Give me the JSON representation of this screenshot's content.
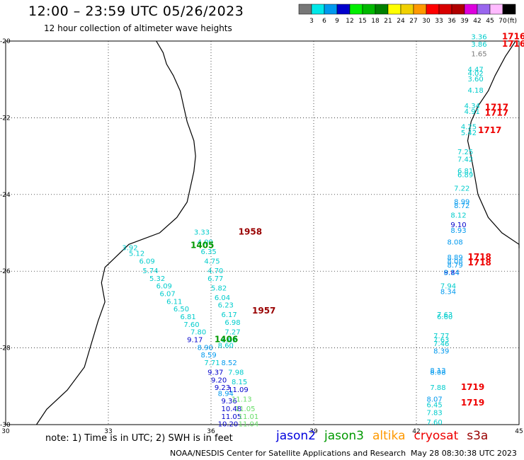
{
  "header": {
    "title": "12:00 – 23:59 UTC 05/26/2023",
    "subtitle": "12 hour collection of altimeter wave heights"
  },
  "colorbar": {
    "colors": [
      "#777777",
      "#00e8e8",
      "#0099ee",
      "#0000cc",
      "#00ee00",
      "#00b800",
      "#008000",
      "#ffff00",
      "#f0d000",
      "#ff9900",
      "#ff0000",
      "#d80000",
      "#b00000",
      "#dd00dd",
      "#9966ee",
      "#ffbbff",
      "#000000"
    ],
    "labels": [
      "3",
      "6",
      "9",
      "12",
      "15",
      "18",
      "21",
      "24",
      "27",
      "30",
      "33",
      "36",
      "39",
      "42",
      "45",
      "70"
    ],
    "unit": "(ft)"
  },
  "axes": {
    "lat_labels": [
      "-20",
      "-22",
      "-24",
      "-26",
      "-28",
      "-30"
    ],
    "lon_labels": [
      "30",
      "33",
      "36",
      "39",
      "42",
      "45"
    ]
  },
  "satellites": [
    {
      "name": "jason2",
      "color": "#0000dd"
    },
    {
      "name": "jason3",
      "color": "#009900"
    },
    {
      "name": "altika",
      "color": "#ff9900"
    },
    {
      "name": "cryosat",
      "color": "#ee0000"
    },
    {
      "name": "s3a",
      "color": "#990000"
    }
  ],
  "time_labels": [
    {
      "text": "1958",
      "lon": 36.8,
      "lat": -25.05,
      "color": "#990000"
    },
    {
      "text": "1405",
      "lon": 35.4,
      "lat": -25.4,
      "color": "#009900"
    },
    {
      "text": "1957",
      "lon": 37.2,
      "lat": -27.1,
      "color": "#990000"
    },
    {
      "text": "1406",
      "lon": 36.1,
      "lat": -27.85,
      "color": "#009900"
    },
    {
      "text": "1716",
      "lon": 44.5,
      "lat": -19.95,
      "color": "#ee0000"
    },
    {
      "text": "1716",
      "lon": 44.5,
      "lat": -20.15,
      "color": "#ee0000"
    },
    {
      "text": "1717",
      "lon": 44.0,
      "lat": -21.8,
      "color": "#ee0000"
    },
    {
      "text": "1717",
      "lon": 44.0,
      "lat": -21.95,
      "color": "#ee0000"
    },
    {
      "text": "1717",
      "lon": 43.8,
      "lat": -22.4,
      "color": "#ee0000"
    },
    {
      "text": "1718",
      "lon": 43.5,
      "lat": -25.7,
      "color": "#ee0000"
    },
    {
      "text": "1718",
      "lon": 43.5,
      "lat": -25.85,
      "color": "#ee0000"
    },
    {
      "text": "1719",
      "lon": 43.3,
      "lat": -29.1,
      "color": "#ee0000"
    },
    {
      "text": "1719",
      "lon": 43.3,
      "lat": -29.5,
      "color": "#ee0000"
    }
  ],
  "wave_heights": [
    {
      "text": "3.33",
      "lon": 35.5,
      "lat": -25.05,
      "color": "#00cccc"
    },
    {
      "text": "4.09",
      "lon": 35.6,
      "lat": -25.3,
      "color": "#00cccc"
    },
    {
      "text": "3.92",
      "lon": 33.4,
      "lat": -25.45,
      "color": "#00cccc"
    },
    {
      "text": "6.35",
      "lon": 35.7,
      "lat": -25.55,
      "color": "#00cccc"
    },
    {
      "text": "5.12",
      "lon": 33.6,
      "lat": -25.6,
      "color": "#00cccc"
    },
    {
      "text": "4.75",
      "lon": 35.8,
      "lat": -25.8,
      "color": "#00cccc"
    },
    {
      "text": "6.09",
      "lon": 33.9,
      "lat": -25.8,
      "color": "#00cccc"
    },
    {
      "text": "4.70",
      "lon": 35.9,
      "lat": -26.05,
      "color": "#00cccc"
    },
    {
      "text": "5.74",
      "lon": 34.0,
      "lat": -26.05,
      "color": "#00cccc"
    },
    {
      "text": "6.77",
      "lon": 35.9,
      "lat": -26.25,
      "color": "#00cccc"
    },
    {
      "text": "5.32",
      "lon": 34.2,
      "lat": -26.25,
      "color": "#00cccc"
    },
    {
      "text": "5.82",
      "lon": 36.0,
      "lat": -26.5,
      "color": "#00cccc"
    },
    {
      "text": "6.09",
      "lon": 34.4,
      "lat": -26.45,
      "color": "#00cccc"
    },
    {
      "text": "6.07",
      "lon": 34.5,
      "lat": -26.65,
      "color": "#00cccc"
    },
    {
      "text": "6.04",
      "lon": 36.1,
      "lat": -26.75,
      "color": "#00cccc"
    },
    {
      "text": "6.11",
      "lon": 34.7,
      "lat": -26.85,
      "color": "#00cccc"
    },
    {
      "text": "6.23",
      "lon": 36.2,
      "lat": -26.95,
      "color": "#00cccc"
    },
    {
      "text": "6.50",
      "lon": 34.9,
      "lat": -27.05,
      "color": "#00cccc"
    },
    {
      "text": "6.17",
      "lon": 36.3,
      "lat": -27.2,
      "color": "#00cccc"
    },
    {
      "text": "6.81",
      "lon": 35.1,
      "lat": -27.25,
      "color": "#00cccc"
    },
    {
      "text": "6.98",
      "lon": 36.4,
      "lat": -27.4,
      "color": "#00cccc"
    },
    {
      "text": "7.60",
      "lon": 35.2,
      "lat": -27.45,
      "color": "#00cccc"
    },
    {
      "text": "7.27",
      "lon": 36.4,
      "lat": -27.65,
      "color": "#00cccc"
    },
    {
      "text": "7.80",
      "lon": 35.4,
      "lat": -27.65,
      "color": "#00cccc"
    },
    {
      "text": "9.17",
      "lon": 35.3,
      "lat": -27.85,
      "color": "#0000cc"
    },
    {
      "text": "8.02",
      "lon": 36.3,
      "lat": -27.85,
      "color": "#00cccc"
    },
    {
      "text": "8.90",
      "lon": 35.6,
      "lat": -28.05,
      "color": "#0099ee"
    },
    {
      "text": "8.60",
      "lon": 36.2,
      "lat": -28.0,
      "color": "#00cccc"
    },
    {
      "text": "8.59",
      "lon": 35.7,
      "lat": -28.25,
      "color": "#0099ee"
    },
    {
      "text": "7.71",
      "lon": 35.8,
      "lat": -28.45,
      "color": "#00cccc"
    },
    {
      "text": "8.52",
      "lon": 36.3,
      "lat": -28.45,
      "color": "#0099ee"
    },
    {
      "text": "9.37",
      "lon": 35.9,
      "lat": -28.7,
      "color": "#0000cc"
    },
    {
      "text": "7.98",
      "lon": 36.5,
      "lat": -28.7,
      "color": "#00cccc"
    },
    {
      "text": "9.20",
      "lon": 36.0,
      "lat": -28.9,
      "color": "#0000cc"
    },
    {
      "text": "8.15",
      "lon": 36.6,
      "lat": -28.95,
      "color": "#00cccc"
    },
    {
      "text": "9.23",
      "lon": 36.1,
      "lat": -29.1,
      "color": "#0000cc"
    },
    {
      "text": "11.09",
      "lon": 36.5,
      "lat": -29.15,
      "color": "#0000cc"
    },
    {
      "text": "8.94",
      "lon": 36.2,
      "lat": -29.25,
      "color": "#0099ee"
    },
    {
      "text": "9.36",
      "lon": 36.3,
      "lat": -29.45,
      "color": "#0000cc"
    },
    {
      "text": "11.13",
      "lon": 36.6,
      "lat": -29.4,
      "color": "#66dd66"
    },
    {
      "text": "10.48",
      "lon": 36.3,
      "lat": -29.65,
      "color": "#0000cc"
    },
    {
      "text": "11.05",
      "lon": 36.7,
      "lat": -29.65,
      "color": "#66dd66"
    },
    {
      "text": "11.05",
      "lon": 36.3,
      "lat": -29.85,
      "color": "#0000cc"
    },
    {
      "text": "11.01",
      "lon": 36.8,
      "lat": -29.85,
      "color": "#66dd66"
    },
    {
      "text": "10.20",
      "lon": 36.2,
      "lat": -30.05,
      "color": "#0000cc"
    },
    {
      "text": "11.04",
      "lon": 36.8,
      "lat": -30.05,
      "color": "#66dd66"
    },
    {
      "text": "3.36",
      "lon": 43.6,
      "lat": -19.95,
      "color": "#00cccc"
    },
    {
      "text": "3.86",
      "lon": 43.6,
      "lat": -20.15,
      "color": "#00cccc"
    },
    {
      "text": "1.65",
      "lon": 43.6,
      "lat": -20.4,
      "color": "#777777"
    },
    {
      "text": "4.47",
      "lon": 43.5,
      "lat": -20.8,
      "color": "#00cccc"
    },
    {
      "text": "4.02",
      "lon": 43.5,
      "lat": -20.9,
      "color": "#00cccc"
    },
    {
      "text": "3.60",
      "lon": 43.5,
      "lat": -21.05,
      "color": "#00cccc"
    },
    {
      "text": "4.18",
      "lon": 43.5,
      "lat": -21.35,
      "color": "#00cccc"
    },
    {
      "text": "4.34",
      "lon": 43.4,
      "lat": -21.75,
      "color": "#00cccc"
    },
    {
      "text": "4.91",
      "lon": 43.4,
      "lat": -21.9,
      "color": "#00cccc"
    },
    {
      "text": "4.25",
      "lon": 43.3,
      "lat": -22.3,
      "color": "#00cccc"
    },
    {
      "text": "5.42",
      "lon": 43.3,
      "lat": -22.45,
      "color": "#00cccc"
    },
    {
      "text": "7.25",
      "lon": 43.2,
      "lat": -22.95,
      "color": "#00cccc"
    },
    {
      "text": "7.42",
      "lon": 43.2,
      "lat": -23.15,
      "color": "#00cccc"
    },
    {
      "text": "6.81",
      "lon": 43.2,
      "lat": -23.45,
      "color": "#00cccc"
    },
    {
      "text": "6.89",
      "lon": 43.2,
      "lat": -23.55,
      "color": "#00cccc"
    },
    {
      "text": "7.22",
      "lon": 43.1,
      "lat": -23.9,
      "color": "#00cccc"
    },
    {
      "text": "8.99",
      "lon": 43.1,
      "lat": -24.25,
      "color": "#0099ee"
    },
    {
      "text": "8.72",
      "lon": 43.1,
      "lat": -24.35,
      "color": "#0099ee"
    },
    {
      "text": "8.12",
      "lon": 43.0,
      "lat": -24.6,
      "color": "#00cccc"
    },
    {
      "text": "9.10",
      "lon": 43.0,
      "lat": -24.85,
      "color": "#0000cc"
    },
    {
      "text": "8.93",
      "lon": 43.0,
      "lat": -25.0,
      "color": "#0099ee"
    },
    {
      "text": "8.08",
      "lon": 42.9,
      "lat": -25.3,
      "color": "#0099ee"
    },
    {
      "text": "8.89",
      "lon": 42.9,
      "lat": -25.7,
      "color": "#0099ee"
    },
    {
      "text": "8.08",
      "lon": 42.9,
      "lat": -25.8,
      "color": "#0099ee"
    },
    {
      "text": "8.79",
      "lon": 42.9,
      "lat": -25.9,
      "color": "#0099ee"
    },
    {
      "text": "9.84",
      "lon": 42.8,
      "lat": -26.1,
      "color": "#0000cc"
    },
    {
      "text": "8.14",
      "lon": 42.8,
      "lat": -26.1,
      "color": "#0099ee"
    },
    {
      "text": "7.94",
      "lon": 42.7,
      "lat": -26.45,
      "color": "#00cccc"
    },
    {
      "text": "8.34",
      "lon": 42.7,
      "lat": -26.6,
      "color": "#0099ee"
    },
    {
      "text": "7.63",
      "lon": 42.6,
      "lat": -27.2,
      "color": "#00cccc"
    },
    {
      "text": "6.60",
      "lon": 42.6,
      "lat": -27.25,
      "color": "#00cccc"
    },
    {
      "text": "7.77",
      "lon": 42.5,
      "lat": -27.75,
      "color": "#00cccc"
    },
    {
      "text": "7.63",
      "lon": 42.5,
      "lat": -27.85,
      "color": "#00cccc"
    },
    {
      "text": "7.46",
      "lon": 42.5,
      "lat": -27.95,
      "color": "#00cccc"
    },
    {
      "text": "8.39",
      "lon": 42.5,
      "lat": -28.15,
      "color": "#0099ee"
    },
    {
      "text": "8.13",
      "lon": 42.4,
      "lat": -28.65,
      "color": "#0099ee"
    },
    {
      "text": "8.08",
      "lon": 42.4,
      "lat": -28.7,
      "color": "#0099ee"
    },
    {
      "text": "7.88",
      "lon": 42.4,
      "lat": -29.1,
      "color": "#00cccc"
    },
    {
      "text": "8.07",
      "lon": 42.3,
      "lat": -29.4,
      "color": "#0099ee"
    },
    {
      "text": "6.45",
      "lon": 42.3,
      "lat": -29.55,
      "color": "#00cccc"
    },
    {
      "text": "7.83",
      "lon": 42.3,
      "lat": -29.75,
      "color": "#00cccc"
    },
    {
      "text": "7.60",
      "lon": 42.3,
      "lat": -30.0,
      "color": "#00cccc"
    }
  ],
  "footer": {
    "note": "note: 1) Time is in UTC; 2) SWH is in feet",
    "left": "NOAA/NESDIS Center for Satellite Applications and Research",
    "right": "May 28 08:30:38 UTC 2023"
  }
}
